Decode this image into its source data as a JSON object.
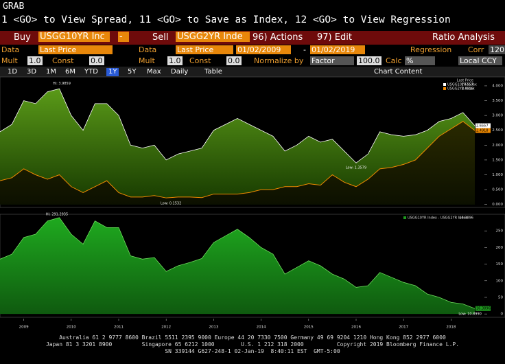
{
  "header": {
    "title": "GRAB",
    "command": "1 <GO> to View Spread, 11 <GO> to Save as Index, 12 <GO> to View Regression"
  },
  "toolbar": {
    "buy": "Buy",
    "buy_ticker": "USGG10YR Inc",
    "minus": "-",
    "sell": "Sell",
    "sell_ticker": "USGG2YR Inde",
    "actions": "96) Actions",
    "edit": "97) Edit",
    "ratio": "Ratio Analysis"
  },
  "row2": {
    "data1": "Data",
    "field1": "Last Price",
    "data2": "Data",
    "field2": "Last Price",
    "start": "01/02/2009",
    "dash": "-",
    "end": "01/02/2019",
    "regression": "Regression",
    "corr": "Corr",
    "corr_value": "120"
  },
  "row3": {
    "mult1": "Mult",
    "mult1_value": "1.0",
    "const1": "Const",
    "const1_value": "0.0",
    "mult2": "Mult",
    "mult2_value": "1.0",
    "const2": "Const",
    "const2_value": "0.0",
    "normalize": "Normalize by",
    "factor": "Factor",
    "factor_value": "100.0",
    "calc": "Calc",
    "calc_value": "%",
    "ccy": "Local CCY"
  },
  "periods": {
    "items": [
      "1D",
      "3D",
      "1M",
      "6M",
      "YTD",
      "1Y",
      "5Y",
      "Max",
      "Daily",
      "Table"
    ],
    "active": "1Y",
    "content": "Chart Content"
  },
  "footer": {
    "lines": [
      "Australia 61 2 9777 8600 Brazil 5511 2395 9000 Europe 44 20 7330 7500 Germany 49 69 9204 1210 Hong Kong 852 2977 6000",
      "Japan 81 3 3201 8900         Singapore 65 6212 1000        U.S. 1 212 318 2000          Copyright 2019 Bloomberg Finance L.P.",
      "SN 339144 G627-248-1 02-Jan-19  8:40:11 EST  GMT-5:00"
    ]
  },
  "chart_data": [
    {
      "type": "area-line",
      "legend_title": "Last Price",
      "x": [
        2009,
        2009.25,
        2009.5,
        2009.75,
        2010,
        2010.25,
        2010.5,
        2010.75,
        2011,
        2011.25,
        2011.5,
        2011.75,
        2012,
        2012.25,
        2012.5,
        2012.75,
        2013,
        2013.25,
        2013.5,
        2013.75,
        2014,
        2014.25,
        2014.5,
        2014.75,
        2015,
        2015.25,
        2015.5,
        2015.75,
        2016,
        2016.25,
        2016.5,
        2016.75,
        2017,
        2017.25,
        2017.5,
        2017.75,
        2018,
        2018.25,
        2018.5,
        2018.75,
        2019
      ],
      "series": [
        {
          "name": "USGG10YR Index",
          "color": "#ffffff",
          "values": [
            2.45,
            2.7,
            3.5,
            3.4,
            3.8,
            3.9,
            3.0,
            2.5,
            3.4,
            3.4,
            3.0,
            2.0,
            1.9,
            2.0,
            1.5,
            1.7,
            1.8,
            1.9,
            2.5,
            2.7,
            2.9,
            2.7,
            2.5,
            2.3,
            1.8,
            2.0,
            2.3,
            2.1,
            2.2,
            1.8,
            1.4,
            1.7,
            2.45,
            2.35,
            2.3,
            2.35,
            2.5,
            2.8,
            2.9,
            3.1,
            2.6557
          ]
        },
        {
          "name": "USGG2YR Index",
          "color": "#f08a00",
          "values": [
            0.8,
            0.9,
            1.2,
            1.0,
            0.85,
            1.0,
            0.6,
            0.4,
            0.6,
            0.8,
            0.4,
            0.25,
            0.25,
            0.3,
            0.22,
            0.25,
            0.25,
            0.23,
            0.35,
            0.35,
            0.35,
            0.4,
            0.5,
            0.5,
            0.6,
            0.6,
            0.7,
            0.65,
            1.0,
            0.75,
            0.6,
            0.85,
            1.2,
            1.25,
            1.35,
            1.5,
            1.9,
            2.3,
            2.55,
            2.8,
            2.4918
          ]
        }
      ],
      "ylim": [
        -0.1,
        4.3
      ],
      "xlim": [
        2009,
        2019
      ],
      "yticks": [
        {
          "value": 0,
          "label": "0.000"
        },
        {
          "value": 0.5,
          "label": "0.500"
        },
        {
          "value": 1,
          "label": "1.000"
        },
        {
          "value": 1.5,
          "label": "1.500"
        },
        {
          "value": 2,
          "label": "2.000"
        },
        {
          "value": 2.5,
          "label": "2.500"
        },
        {
          "value": 3,
          "label": "3.000"
        },
        {
          "value": 3.5,
          "label": "3.500"
        },
        {
          "value": 4,
          "label": "4.000"
        }
      ],
      "annotations": [
        {
          "text": "Hi: 3.9859",
          "x": 2010.3,
          "y": 3.9859
        },
        {
          "text": "Low: 1.3579",
          "x": 2016.5,
          "y": 1.3579
        },
        {
          "text": "Low: 0.1532",
          "x": 2012.6,
          "y": 0.1532
        }
      ]
    },
    {
      "type": "area",
      "legend_title": "",
      "x": [
        2009,
        2009.25,
        2009.5,
        2009.75,
        2010,
        2010.25,
        2010.5,
        2010.75,
        2011,
        2011.25,
        2011.5,
        2011.75,
        2012,
        2012.25,
        2012.5,
        2012.75,
        2013,
        2013.25,
        2013.5,
        2013.75,
        2014,
        2014.25,
        2014.5,
        2014.75,
        2015,
        2015.25,
        2015.5,
        2015.75,
        2016,
        2016.25,
        2016.5,
        2016.75,
        2017,
        2017.25,
        2017.5,
        2017.75,
        2018,
        2018.25,
        2018.5,
        2018.75,
        2019
      ],
      "series": [
        {
          "name": "USGG10YR Index - USGG2YR Index",
          "color": "#1f9a1f",
          "values": [
            165,
            180,
            230,
            240,
            280,
            290,
            240,
            210,
            280,
            260,
            260,
            175,
            165,
            170,
            128,
            145,
            155,
            167,
            215,
            235,
            255,
            230,
            200,
            180,
            120,
            140,
            160,
            145,
            120,
            105,
            80,
            85,
            125,
            110,
            95,
            85,
            60,
            50,
            35,
            30,
            16.3896
          ]
        }
      ],
      "ylim": [
        -10,
        300
      ],
      "xlim": [
        2009,
        2019
      ],
      "yticks": [
        0,
        50,
        100,
        150,
        200,
        250
      ],
      "xticks": [
        {
          "value": 2009.5,
          "label": "2009"
        },
        {
          "value": 2010.5,
          "label": "2010"
        },
        {
          "value": 2011.5,
          "label": "2011"
        },
        {
          "value": 2012.5,
          "label": "2012"
        },
        {
          "value": 2013.5,
          "label": "2013"
        },
        {
          "value": 2014.5,
          "label": "2014"
        },
        {
          "value": 2015.5,
          "label": "2015"
        },
        {
          "value": 2016.5,
          "label": "2016"
        },
        {
          "value": 2017.5,
          "label": "2017"
        },
        {
          "value": 2018.5,
          "label": "2018"
        }
      ],
      "annotations": [
        {
          "text": "Hi: 291.2935",
          "x": 2010.2,
          "y": 291.2935
        },
        {
          "text": "Low: 10.8990",
          "x": 2018.9,
          "y": 10.899
        }
      ]
    }
  ]
}
